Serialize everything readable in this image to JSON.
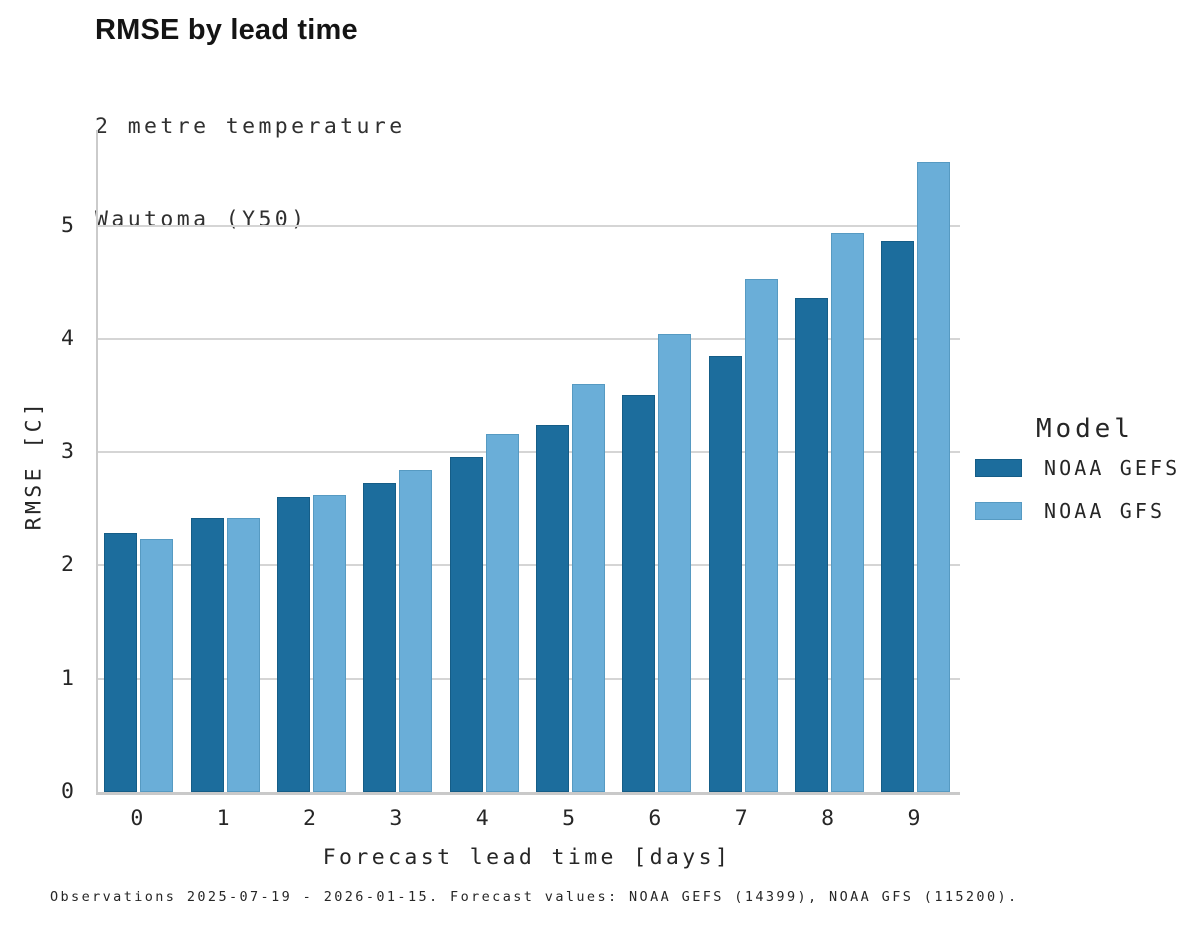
{
  "title": "RMSE by lead time",
  "subtitle_line1": "2 metre temperature",
  "subtitle_line2": "Wautoma (Y50)",
  "footer": "Observations 2025-07-19 - 2026-01-15. Forecast values: NOAA GEFS (14399), NOAA GFS (115200).",
  "legend": {
    "title": "Model",
    "items": [
      {
        "label": "NOAA GEFS",
        "color": "#1c6d9d",
        "border": "#155d87"
      },
      {
        "label": "NOAA GFS",
        "color": "#6aaed8",
        "border": "#569ac2"
      }
    ]
  },
  "colors": {
    "gefs_bar": "#1c6d9d",
    "gfs_bar": "#6aaed8",
    "gridline": "#d5d5d5",
    "axis_spine": "#cbcbcb",
    "text": "#262626"
  },
  "chart_data": {
    "type": "bar",
    "categories": [
      "0",
      "1",
      "2",
      "3",
      "4",
      "5",
      "6",
      "7",
      "8",
      "9"
    ],
    "series": [
      {
        "name": "NOAA GEFS",
        "color": "#1c6d9d",
        "border": "#155d87",
        "values": [
          2.29,
          2.42,
          2.6,
          2.73,
          2.96,
          3.24,
          3.5,
          3.85,
          4.36,
          4.86
        ]
      },
      {
        "name": "NOAA GFS",
        "color": "#6aaed8",
        "border": "#569ac2",
        "values": [
          2.23,
          2.42,
          2.62,
          2.84,
          3.16,
          3.6,
          4.04,
          4.53,
          4.93,
          5.56
        ]
      }
    ],
    "title": "RMSE by lead time",
    "subtitle": "2 metre temperature / Wautoma (Y50)",
    "xlabel": "Forecast lead time [days]",
    "ylabel": "RMSE [C]",
    "ylim": [
      0,
      5.84
    ],
    "yticks": [
      0,
      1,
      2,
      3,
      4,
      5
    ],
    "grid": true,
    "legend_position": "right"
  }
}
